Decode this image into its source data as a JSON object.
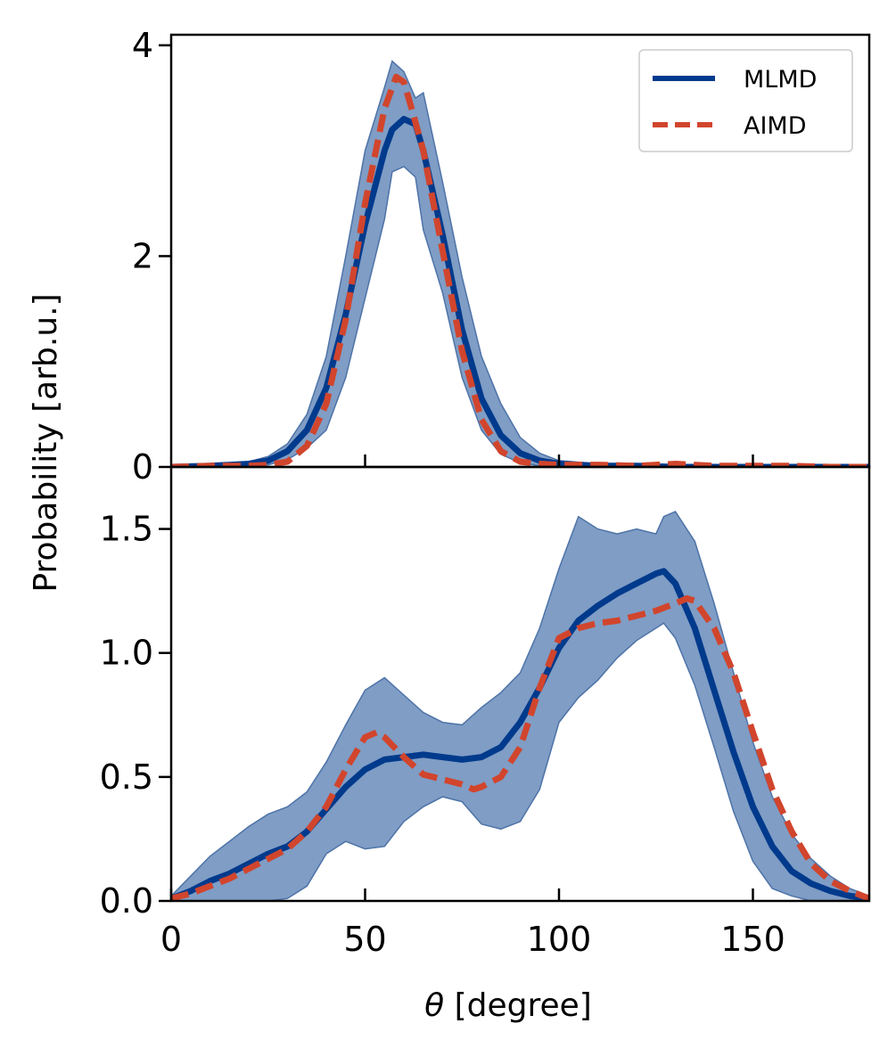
{
  "chart_data": [
    {
      "type": "line",
      "panel": "top",
      "xlim": [
        0,
        180
      ],
      "ylim": [
        0,
        4.1
      ],
      "xticks": [
        50,
        100,
        150
      ],
      "yticks": [
        0,
        2,
        4
      ],
      "ytick_labels": [
        "0",
        "2",
        "4"
      ],
      "legend": {
        "position": "top-right",
        "entries": [
          "MLMD",
          "AIMD"
        ]
      },
      "series": [
        {
          "name": "MLMD",
          "style": "solid",
          "color": "#003A8C",
          "x": [
            0,
            10,
            20,
            25,
            30,
            35,
            40,
            45,
            50,
            55,
            57,
            60,
            63,
            65,
            70,
            75,
            80,
            85,
            90,
            95,
            100,
            110,
            120,
            130,
            140,
            150,
            160,
            170,
            180
          ],
          "y": [
            0,
            0.01,
            0.03,
            0.06,
            0.15,
            0.35,
            0.75,
            1.45,
            2.3,
            3.0,
            3.2,
            3.3,
            3.25,
            3.0,
            2.2,
            1.3,
            0.65,
            0.3,
            0.13,
            0.06,
            0.03,
            0.01,
            0.01,
            0,
            0,
            0,
            0,
            0,
            0
          ],
          "band_upper": [
            0,
            0.02,
            0.05,
            0.1,
            0.22,
            0.5,
            1.05,
            2.0,
            3.0,
            3.6,
            3.85,
            3.75,
            3.5,
            3.55,
            2.7,
            1.8,
            1.05,
            0.6,
            0.28,
            0.13,
            0.06,
            0.03,
            0.02,
            0.01,
            0.01,
            0.01,
            0.01,
            0,
            0
          ],
          "band_lower": [
            0,
            0,
            0.01,
            0.02,
            0.07,
            0.18,
            0.35,
            0.85,
            1.6,
            2.35,
            2.8,
            2.85,
            2.75,
            2.25,
            1.65,
            0.85,
            0.35,
            0.12,
            0.04,
            0.01,
            0,
            0,
            0,
            0,
            0,
            0,
            0,
            0,
            0
          ]
        },
        {
          "name": "AIMD",
          "style": "dashed",
          "color": "#D1452D",
          "x": [
            0,
            10,
            20,
            25,
            30,
            35,
            40,
            45,
            50,
            55,
            58,
            60,
            62,
            65,
            70,
            75,
            80,
            85,
            90,
            95,
            100,
            110,
            120,
            130,
            140,
            150,
            160,
            170,
            180
          ],
          "y": [
            0,
            0.01,
            0.01,
            0.02,
            0.05,
            0.2,
            0.6,
            1.4,
            2.5,
            3.4,
            3.7,
            3.65,
            3.4,
            3.0,
            2.05,
            1.1,
            0.45,
            0.15,
            0.05,
            0.03,
            0.02,
            0.02,
            0.01,
            0.03,
            0.01,
            0.01,
            0.01,
            0,
            0
          ]
        }
      ]
    },
    {
      "type": "line",
      "panel": "bottom",
      "xlim": [
        0,
        180
      ],
      "ylim": [
        0,
        1.75
      ],
      "xticks": [
        0,
        50,
        100,
        150
      ],
      "xtick_labels": [
        "0",
        "50",
        "100",
        "150"
      ],
      "yticks": [
        0,
        0.5,
        1.0,
        1.5
      ],
      "ytick_labels": [
        "0.0",
        "0.5",
        "1.0",
        "1.5"
      ],
      "series": [
        {
          "name": "MLMD",
          "style": "solid",
          "color": "#003A8C",
          "x": [
            0,
            5,
            10,
            15,
            20,
            25,
            30,
            35,
            40,
            45,
            50,
            55,
            60,
            65,
            70,
            75,
            80,
            85,
            90,
            95,
            100,
            105,
            110,
            115,
            120,
            125,
            127,
            130,
            135,
            140,
            145,
            150,
            155,
            160,
            165,
            170,
            175,
            180
          ],
          "y": [
            0.01,
            0.04,
            0.08,
            0.11,
            0.15,
            0.19,
            0.22,
            0.28,
            0.37,
            0.46,
            0.53,
            0.57,
            0.58,
            0.59,
            0.58,
            0.57,
            0.58,
            0.62,
            0.72,
            0.86,
            1.02,
            1.13,
            1.19,
            1.24,
            1.28,
            1.32,
            1.33,
            1.28,
            1.1,
            0.85,
            0.6,
            0.38,
            0.22,
            0.12,
            0.07,
            0.04,
            0.02,
            0.01
          ],
          "band_upper": [
            0.02,
            0.1,
            0.18,
            0.24,
            0.3,
            0.35,
            0.38,
            0.44,
            0.56,
            0.71,
            0.85,
            0.9,
            0.83,
            0.76,
            0.72,
            0.71,
            0.78,
            0.84,
            0.92,
            1.1,
            1.34,
            1.55,
            1.5,
            1.48,
            1.5,
            1.48,
            1.55,
            1.57,
            1.45,
            1.2,
            0.92,
            0.64,
            0.42,
            0.27,
            0.17,
            0.1,
            0.05,
            0.02
          ],
          "band_lower": [
            0,
            0,
            0,
            0,
            0,
            0,
            0.01,
            0.06,
            0.19,
            0.24,
            0.21,
            0.22,
            0.32,
            0.38,
            0.42,
            0.4,
            0.31,
            0.29,
            0.32,
            0.45,
            0.72,
            0.82,
            0.89,
            0.98,
            1.05,
            1.1,
            1.12,
            1.06,
            0.87,
            0.62,
            0.36,
            0.16,
            0.05,
            0.02,
            0,
            0,
            0,
            0
          ]
        },
        {
          "name": "AIMD",
          "style": "dashed",
          "color": "#D1452D",
          "x": [
            0,
            5,
            10,
            15,
            20,
            25,
            30,
            35,
            40,
            45,
            50,
            53,
            55,
            60,
            65,
            70,
            75,
            78,
            80,
            85,
            90,
            95,
            100,
            105,
            110,
            115,
            120,
            125,
            130,
            133,
            135,
            140,
            145,
            150,
            155,
            160,
            165,
            170,
            175,
            180
          ],
          "y": [
            0.01,
            0.03,
            0.06,
            0.09,
            0.13,
            0.17,
            0.21,
            0.28,
            0.38,
            0.53,
            0.66,
            0.68,
            0.66,
            0.58,
            0.51,
            0.49,
            0.47,
            0.45,
            0.46,
            0.5,
            0.62,
            0.86,
            1.06,
            1.1,
            1.12,
            1.13,
            1.15,
            1.17,
            1.2,
            1.22,
            1.21,
            1.1,
            0.92,
            0.68,
            0.45,
            0.28,
            0.15,
            0.08,
            0.04,
            0.01
          ]
        }
      ]
    }
  ],
  "axes": {
    "ylabel": "Probability [arb.u.]",
    "xlabel_symbol": "θ",
    "xlabel_rest": " [degree]"
  }
}
